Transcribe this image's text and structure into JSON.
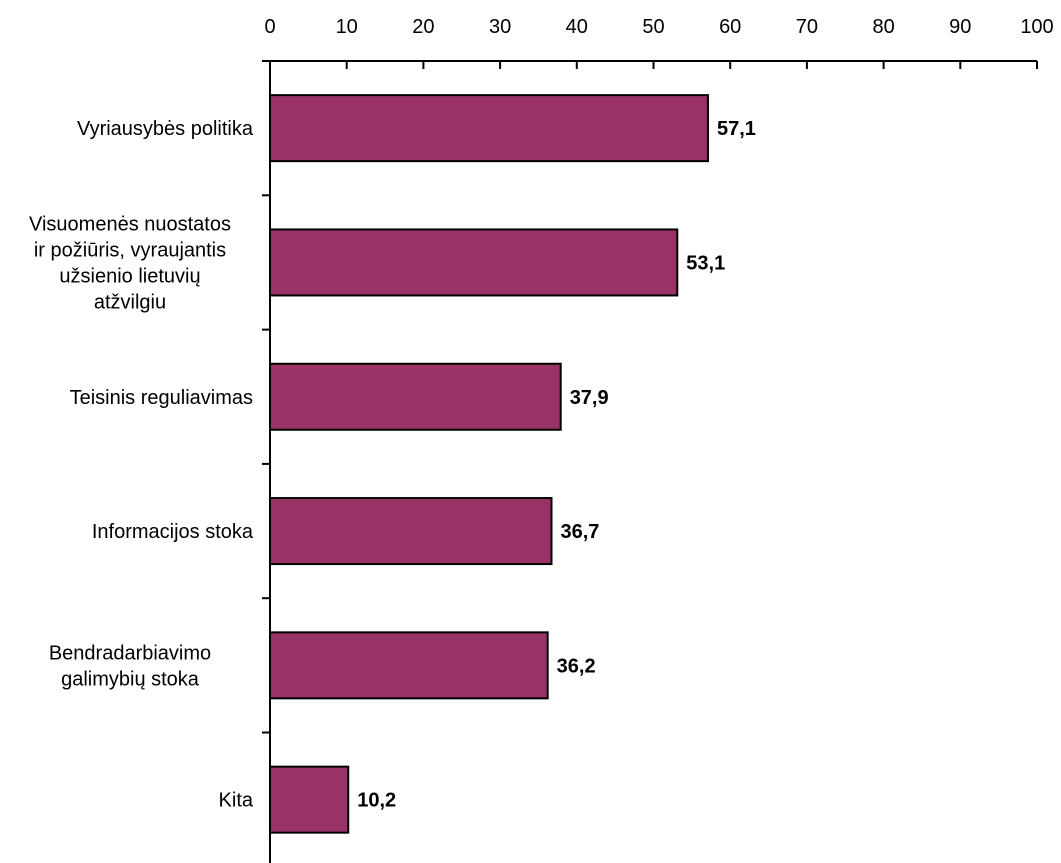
{
  "chart_data": {
    "type": "bar",
    "orientation": "horizontal",
    "categories": [
      [
        "Vyriausybės politika"
      ],
      [
        "Visuomenės nuostatos",
        "ir požiūris, vyraujantis",
        "užsienio lietuvių",
        "atžvilgiu"
      ],
      [
        "Teisinis reguliavimas"
      ],
      [
        "Informacijos stoka"
      ],
      [
        "Bendradarbiavimo",
        "galimybių stoka"
      ],
      [
        "Kita"
      ]
    ],
    "values": [
      57.1,
      53.1,
      37.9,
      36.7,
      36.2,
      10.2
    ],
    "value_labels": [
      "57,1",
      "53,1",
      "37,9",
      "36,7",
      "36,2",
      "10,2"
    ],
    "x_ticks": [
      "0",
      "10",
      "20",
      "30",
      "40",
      "50",
      "60",
      "70",
      "80",
      "90",
      "100"
    ],
    "xlim": [
      0,
      100
    ],
    "x_axis_position": "top",
    "grid": false,
    "bar_color": "#993366"
  }
}
